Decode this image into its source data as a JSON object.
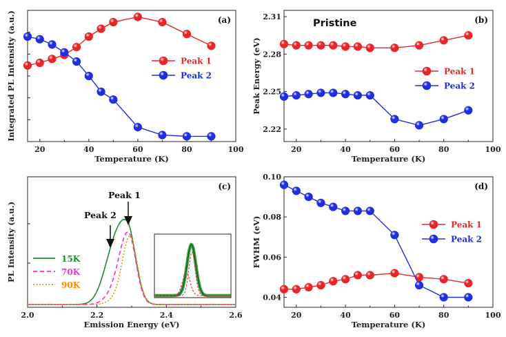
{
  "colors": {
    "peak1": "#e8262a",
    "peak2": "#1f2ee0",
    "k15": "#1e8c2a",
    "k70": "#ff2bd2",
    "k90": "#ff8a00"
  },
  "chart_data": [
    {
      "panel": "(a)",
      "type": "scatter",
      "xlabel": "Temperature (K)",
      "ylabel": "Integrated PL Intensity (a.u.)",
      "xlim": [
        15,
        100
      ],
      "xticks": [
        20,
        40,
        60,
        80,
        100
      ],
      "ylim": [
        0,
        1
      ],
      "yticklabels": "hidden",
      "legend_position": "center-right",
      "series": [
        {
          "name": "Peak 1",
          "x": [
            15,
            20,
            25,
            30,
            35,
            40,
            45,
            50,
            60,
            70,
            80,
            90
          ],
          "y": [
            0.58,
            0.6,
            0.63,
            0.66,
            0.72,
            0.8,
            0.86,
            0.91,
            0.95,
            0.91,
            0.82,
            0.73
          ]
        },
        {
          "name": "Peak 2",
          "x": [
            15,
            20,
            25,
            30,
            35,
            40,
            45,
            50,
            60,
            70,
            80,
            90
          ],
          "y": [
            0.8,
            0.78,
            0.74,
            0.68,
            0.61,
            0.5,
            0.38,
            0.32,
            0.11,
            0.05,
            0.04,
            0.04
          ]
        }
      ]
    },
    {
      "panel": "(b)",
      "type": "scatter",
      "title": "Pristine",
      "xlabel": "Temperature (K)",
      "ylabel": "Peak Energy (eV)",
      "xlim": [
        15,
        100
      ],
      "xticks": [
        20,
        40,
        60,
        80,
        100
      ],
      "ylim": [
        2.21,
        2.315
      ],
      "yticks": [
        2.22,
        2.25,
        2.28,
        2.31
      ],
      "legend_position": "center-right",
      "series": [
        {
          "name": "Peak 1",
          "x": [
            15,
            20,
            25,
            30,
            35,
            40,
            45,
            50,
            60,
            70,
            80,
            90
          ],
          "y": [
            2.288,
            2.287,
            2.287,
            2.287,
            2.287,
            2.286,
            2.286,
            2.285,
            2.285,
            2.287,
            2.291,
            2.295
          ]
        },
        {
          "name": "Peak 2",
          "x": [
            15,
            20,
            25,
            30,
            35,
            40,
            45,
            50,
            60,
            70,
            80,
            90
          ],
          "y": [
            2.246,
            2.247,
            2.248,
            2.249,
            2.249,
            2.248,
            2.247,
            2.247,
            2.228,
            2.223,
            2.228,
            2.235
          ]
        }
      ]
    },
    {
      "panel": "(c)",
      "type": "line",
      "xlabel": "Emission Energy (eV)",
      "ylabel": "PL Intensity (a.u.)",
      "xlim": [
        2.0,
        2.6
      ],
      "xticks": [
        2.0,
        2.2,
        2.4,
        2.6
      ],
      "yticklabels": "hidden",
      "legend_position": "left",
      "annotations": [
        "Peak 1",
        "Peak 2"
      ],
      "series": [
        {
          "name": "15K",
          "peak": 2.287,
          "sigma_left": 0.036,
          "sigma_right": 0.024,
          "shoulder_center": 2.24,
          "shoulder_amp": 0.33,
          "shoulder_sigma": 0.028,
          "amp": 1.0,
          "style": "solid"
        },
        {
          "name": "70K",
          "peak": 2.29,
          "sigma_left": 0.026,
          "sigma_right": 0.022,
          "shoulder_center": 2.245,
          "shoulder_amp": 0.1,
          "shoulder_sigma": 0.025,
          "amp": 0.92,
          "style": "dashed"
        },
        {
          "name": "90K",
          "peak": 2.295,
          "sigma_left": 0.022,
          "sigma_right": 0.021,
          "shoulder_center": 2.25,
          "shoulder_amp": 0.05,
          "shoulder_sigma": 0.022,
          "amp": 0.88,
          "style": "dotted"
        }
      ]
    },
    {
      "panel": "(d)",
      "type": "scatter",
      "xlabel": "Temperature (K)",
      "ylabel": "FWHM (eV)",
      "xlim": [
        15,
        100
      ],
      "xticks": [
        20,
        40,
        60,
        80,
        100
      ],
      "ylim": [
        0.035,
        0.1
      ],
      "yticks": [
        0.04,
        0.06,
        0.08,
        0.1
      ],
      "yticklabels": [
        "0.04",
        "0.06",
        "0.08",
        "0.10"
      ],
      "legend_position": "center-right",
      "series": [
        {
          "name": "Peak 1",
          "x": [
            15,
            20,
            25,
            30,
            35,
            40,
            45,
            50,
            60,
            70,
            80,
            90
          ],
          "y": [
            0.044,
            0.044,
            0.045,
            0.046,
            0.048,
            0.049,
            0.051,
            0.051,
            0.052,
            0.05,
            0.049,
            0.047
          ]
        },
        {
          "name": "Peak 2",
          "x": [
            15,
            20,
            25,
            30,
            35,
            40,
            45,
            50,
            60,
            70,
            80,
            90
          ],
          "y": [
            0.096,
            0.093,
            0.09,
            0.087,
            0.085,
            0.083,
            0.083,
            0.083,
            0.071,
            0.046,
            0.04,
            0.04
          ]
        }
      ]
    }
  ]
}
